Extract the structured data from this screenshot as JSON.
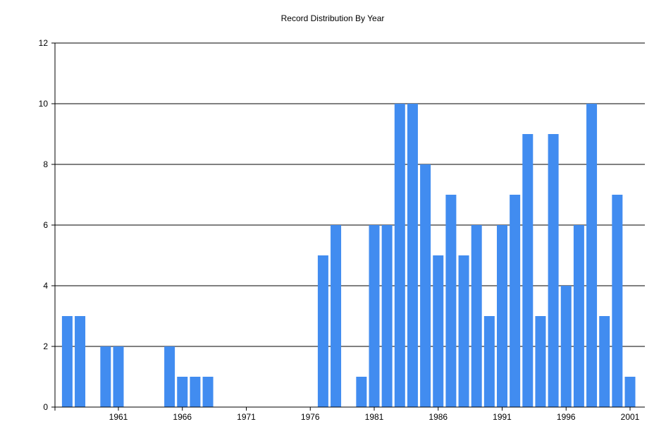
{
  "chart_data": {
    "type": "bar",
    "title": "Record Distribution By Year",
    "xlabel": "",
    "ylabel": "",
    "ylim": [
      0,
      12
    ],
    "yticks": [
      0,
      2,
      4,
      6,
      8,
      10,
      12
    ],
    "xticks": [
      1961,
      1966,
      1971,
      1976,
      1981,
      1986,
      1991,
      1996,
      2001
    ],
    "grid": true,
    "bar_color": "#418CF0",
    "categories": [
      1957,
      1958,
      1960,
      1961,
      1965,
      1966,
      1967,
      1968,
      1977,
      1978,
      1980,
      1981,
      1982,
      1983,
      1984,
      1985,
      1986,
      1987,
      1988,
      1989,
      1990,
      1991,
      1992,
      1993,
      1994,
      1995,
      1996,
      1997,
      1998,
      1999,
      2000,
      2001
    ],
    "values": [
      3,
      3,
      2,
      2,
      2,
      1,
      1,
      1,
      5,
      6,
      1,
      6,
      6,
      10,
      10,
      8,
      5,
      7,
      5,
      6,
      3,
      6,
      7,
      9,
      3,
      9,
      4,
      6,
      10,
      3,
      7,
      1
    ]
  }
}
